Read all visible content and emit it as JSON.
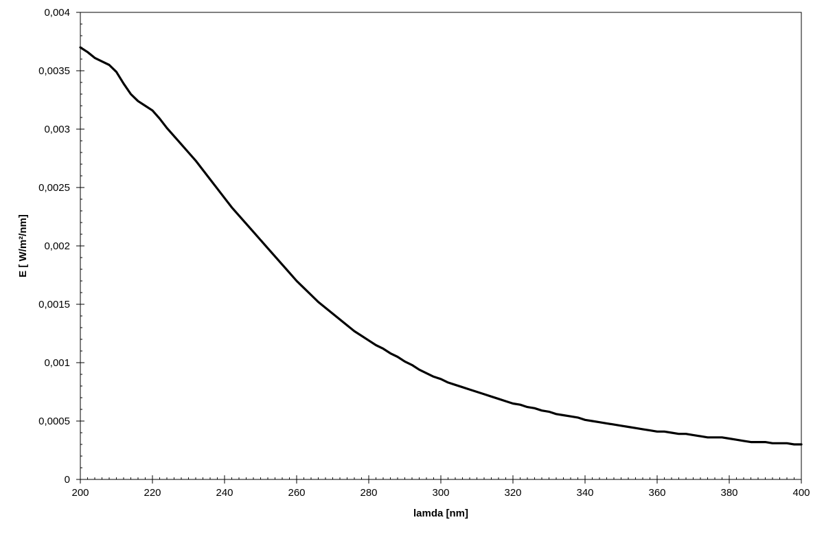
{
  "chart_data": {
    "type": "line",
    "title": "",
    "xlabel": "lamda [nm]",
    "ylabel": "E [ W/m²/nm]",
    "xlim": [
      200,
      400
    ],
    "ylim": [
      0,
      0.004
    ],
    "x_ticks": [
      200,
      220,
      240,
      260,
      280,
      300,
      320,
      340,
      360,
      380,
      400
    ],
    "x_tick_labels": [
      "200",
      "220",
      "240",
      "260",
      "280",
      "300",
      "320",
      "340",
      "360",
      "380",
      "400"
    ],
    "y_ticks": [
      0,
      0.0005,
      0.001,
      0.0015,
      0.002,
      0.0025,
      0.003,
      0.0035,
      0.004
    ],
    "y_tick_labels": [
      "0",
      "0,0005",
      "0,001",
      "0,0015",
      "0,002",
      "0,0025",
      "0,003",
      "0,0035",
      "0,004"
    ],
    "x_minor_step": 2,
    "y_minor_step": 0.0001,
    "grid": false,
    "legend": "none",
    "line_color": "#000000",
    "series": [
      {
        "x": [
          200,
          202,
          204,
          206,
          208,
          210,
          212,
          214,
          216,
          218,
          220,
          222,
          224,
          226,
          228,
          230,
          232,
          234,
          236,
          238,
          240,
          242,
          244,
          246,
          248,
          250,
          252,
          254,
          256,
          258,
          260,
          262,
          264,
          266,
          268,
          270,
          272,
          274,
          276,
          278,
          280,
          282,
          284,
          286,
          288,
          290,
          292,
          294,
          296,
          298,
          300,
          302,
          304,
          306,
          308,
          310,
          312,
          314,
          316,
          318,
          320,
          322,
          324,
          326,
          328,
          330,
          332,
          334,
          336,
          338,
          340,
          342,
          344,
          346,
          348,
          350,
          352,
          354,
          356,
          358,
          360,
          362,
          364,
          366,
          368,
          370,
          372,
          374,
          376,
          378,
          380,
          382,
          384,
          386,
          388,
          390,
          392,
          394,
          396,
          398,
          400
        ],
        "values": [
          0.0037,
          0.00366,
          0.00361,
          0.00358,
          0.00355,
          0.00349,
          0.00339,
          0.0033,
          0.00324,
          0.0032,
          0.00316,
          0.00309,
          0.00301,
          0.00294,
          0.00287,
          0.0028,
          0.00273,
          0.00265,
          0.00257,
          0.00249,
          0.00241,
          0.00233,
          0.00226,
          0.00219,
          0.00212,
          0.00205,
          0.00198,
          0.00191,
          0.00184,
          0.00177,
          0.0017,
          0.00164,
          0.00158,
          0.00152,
          0.00147,
          0.00142,
          0.00137,
          0.00132,
          0.00127,
          0.00123,
          0.00119,
          0.00115,
          0.00112,
          0.00108,
          0.00105,
          0.00101,
          0.00098,
          0.00094,
          0.00091,
          0.00088,
          0.00086,
          0.00083,
          0.00081,
          0.00079,
          0.00077,
          0.00075,
          0.00073,
          0.00071,
          0.00069,
          0.00067,
          0.00065,
          0.00064,
          0.00062,
          0.00061,
          0.00059,
          0.00058,
          0.00056,
          0.00055,
          0.00054,
          0.00053,
          0.00051,
          0.0005,
          0.00049,
          0.00048,
          0.00047,
          0.00046,
          0.00045,
          0.00044,
          0.00043,
          0.00042,
          0.00041,
          0.00041,
          0.0004,
          0.00039,
          0.00039,
          0.00038,
          0.00037,
          0.00036,
          0.00036,
          0.00036,
          0.00035,
          0.00034,
          0.00033,
          0.00032,
          0.00032,
          0.00032,
          0.00031,
          0.00031,
          0.00031,
          0.0003,
          0.0003
        ]
      }
    ]
  }
}
